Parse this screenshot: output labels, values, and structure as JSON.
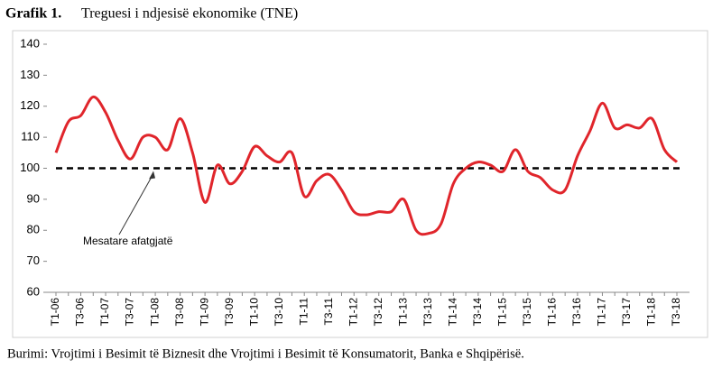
{
  "chart_data": {
    "type": "line",
    "title_label": "Grafik 1.",
    "title": "Treguesi i ndjesisë ekonomike (TNE)",
    "source": "Burimi: Vrojtimi i Besimit të Biznesit dhe Vrojtimi i Besimit të Konsumatorit, Banka e Shqipërisë.",
    "categories": [
      "T1-06",
      null,
      "T3-06",
      null,
      "T1-07",
      null,
      "T3-07",
      null,
      "T1-08",
      null,
      "T3-08",
      null,
      "T1-09",
      null,
      "T3-09",
      null,
      "T1-10",
      null,
      "T3-10",
      null,
      "T1-11",
      null,
      "T3-11",
      null,
      "T1-12",
      null,
      "T3-12",
      null,
      "T1-13",
      null,
      "T3-13",
      null,
      "T1-14",
      null,
      "T3-14",
      null,
      "T1-15",
      null,
      "T3-15",
      null,
      "T1-16",
      null,
      "T3-16",
      null,
      "T1-17",
      null,
      "T3-17",
      null,
      "T1-18",
      null,
      "T3-18"
    ],
    "series": [
      {
        "name": "TNE",
        "color": "#e0252b",
        "values": [
          105,
          115,
          117,
          123,
          118,
          109,
          103,
          110,
          110,
          106,
          116,
          105,
          89,
          101,
          95,
          99,
          107,
          104,
          102,
          105,
          91,
          96,
          98,
          93,
          86,
          85,
          86,
          86,
          90,
          80,
          79,
          82,
          95,
          100,
          102,
          101,
          99,
          106,
          99,
          97,
          93,
          93,
          104,
          112,
          121,
          113,
          114,
          113,
          116,
          106,
          102
        ]
      }
    ],
    "reference_line": {
      "value": 100,
      "label": "Mesatare afatgjatë",
      "color": "#000000"
    },
    "ylim": [
      60,
      140
    ],
    "yticks": [
      60,
      70,
      80,
      90,
      100,
      110,
      120,
      130,
      140
    ]
  }
}
